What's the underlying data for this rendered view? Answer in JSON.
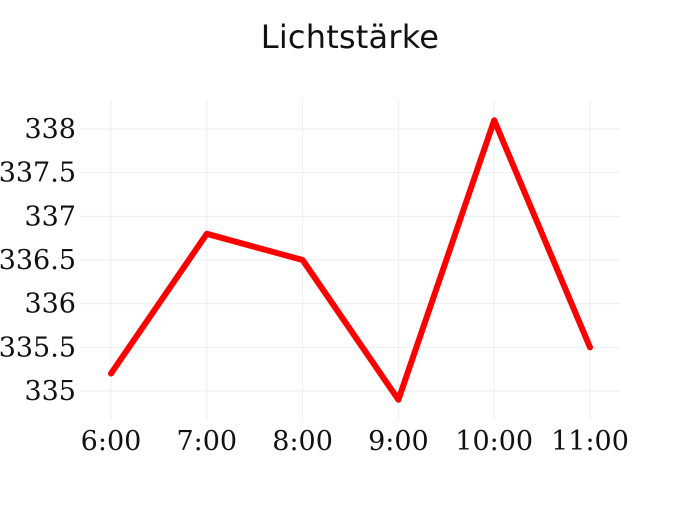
{
  "chart_data": {
    "type": "line",
    "title": "Lichtstärke",
    "xlabel": "",
    "ylabel": "",
    "categories": [
      "6:00",
      "7:00",
      "8:00",
      "9:00",
      "10:00",
      "11:00"
    ],
    "series": [
      {
        "values": [
          335.2,
          336.8,
          336.5,
          334.9,
          338.1,
          335.5
        ],
        "color": "#ff0000"
      }
    ],
    "y_ticks": [
      335,
      335.5,
      336,
      336.5,
      337,
      337.5,
      338
    ],
    "y_tick_labels": [
      "335",
      "335.5",
      "336",
      "336.5",
      "337",
      "337.5",
      "338"
    ],
    "ylim": [
      334.8,
      338.2
    ],
    "grid": true,
    "grid_color": "#eeeeee",
    "line_color": "#ff0000"
  }
}
